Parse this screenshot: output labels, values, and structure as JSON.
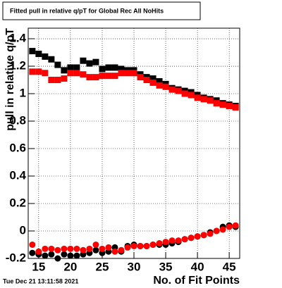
{
  "chart_data": {
    "type": "scatter",
    "title": "Fitted pull in relative q/pT for Global Rec All NoHits",
    "x_label": "No. of Fit Points",
    "y_label": "pull in relative q/pT",
    "timestamp": "Tue Dec 21 13:11:58 2021",
    "x": [
      14,
      15,
      16,
      17,
      18,
      19,
      20,
      21,
      22,
      23,
      24,
      25,
      26,
      27,
      28,
      29,
      30,
      31,
      32,
      33,
      34,
      35,
      36,
      37,
      38,
      39,
      40,
      41,
      42,
      43,
      44,
      45,
      46
    ],
    "series": [
      {
        "color": "#000000",
        "marker": "square",
        "values": [
          1.31,
          1.29,
          1.27,
          1.25,
          1.21,
          1.17,
          1.19,
          1.19,
          1.24,
          1.22,
          1.23,
          1.18,
          1.19,
          1.19,
          1.18,
          1.17,
          1.17,
          1.14,
          1.12,
          1.11,
          1.09,
          1.07,
          1.04,
          1.03,
          1.02,
          1.01,
          0.99,
          0.97,
          0.96,
          0.95,
          0.93,
          0.92,
          0.91
        ]
      },
      {
        "color": "#ff0000",
        "marker": "square",
        "values": [
          1.16,
          1.16,
          1.15,
          1.1,
          1.1,
          1.11,
          1.15,
          1.15,
          1.14,
          1.12,
          1.12,
          1.13,
          1.13,
          1.13,
          1.15,
          1.15,
          1.15,
          1.12,
          1.1,
          1.08,
          1.06,
          1.05,
          1.03,
          1.02,
          1.0,
          0.99,
          0.97,
          0.96,
          0.95,
          0.93,
          0.92,
          0.91,
          0.9
        ]
      },
      {
        "color": "#000000",
        "marker": "circle",
        "values": [
          -0.16,
          -0.17,
          -0.18,
          -0.17,
          -0.2,
          -0.17,
          -0.18,
          -0.18,
          -0.17,
          -0.16,
          -0.14,
          -0.16,
          -0.15,
          -0.12,
          -0.15,
          -0.11,
          -0.1,
          -0.11,
          -0.11,
          -0.1,
          -0.1,
          -0.1,
          -0.09,
          -0.08,
          -0.06,
          -0.05,
          -0.04,
          -0.03,
          -0.01,
          0.0,
          0.03,
          0.04,
          0.03
        ]
      },
      {
        "color": "#ff0000",
        "marker": "circle",
        "values": [
          -0.1,
          -0.15,
          -0.13,
          -0.13,
          -0.14,
          -0.13,
          -0.13,
          -0.13,
          -0.14,
          -0.13,
          -0.1,
          -0.13,
          -0.12,
          -0.15,
          -0.14,
          -0.12,
          -0.11,
          -0.11,
          -0.11,
          -0.1,
          -0.09,
          -0.08,
          -0.07,
          -0.07,
          -0.06,
          -0.05,
          -0.04,
          -0.03,
          -0.02,
          0.0,
          0.01,
          0.03,
          0.04
        ]
      }
    ],
    "xlim": [
      13.35,
      46.65
    ],
    "ylim": [
      -0.2,
      1.477
    ],
    "xticks": [
      15,
      20,
      25,
      30,
      35,
      40,
      45
    ],
    "yticks": [
      -0.2,
      0,
      0.2,
      0.4,
      0.6,
      0.8,
      1,
      1.2,
      1.4
    ],
    "grid": true
  }
}
